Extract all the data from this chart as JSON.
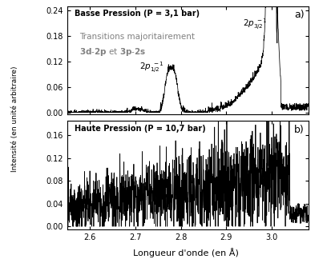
{
  "xlim": [
    2.55,
    3.08
  ],
  "xticks": [
    2.6,
    2.7,
    2.8,
    2.9,
    3.0
  ],
  "xlabel": "Longueur d'onde (en Å)",
  "ylabel": "Intensité (en unité arbitraire)",
  "panel_a": {
    "ylim": [
      -0.005,
      0.25
    ],
    "yticks": [
      0.0,
      0.06,
      0.12,
      0.18,
      0.24
    ],
    "label": "a)",
    "title": "Basse Pression (P = 3,1 bar)"
  },
  "panel_b": {
    "ylim": [
      -0.005,
      0.185
    ],
    "yticks": [
      0.0,
      0.04,
      0.08,
      0.12,
      0.16
    ],
    "label": "b)",
    "title": "Haute Pression (P = 10,7 bar)"
  },
  "line_color": "black",
  "background_color": "white"
}
